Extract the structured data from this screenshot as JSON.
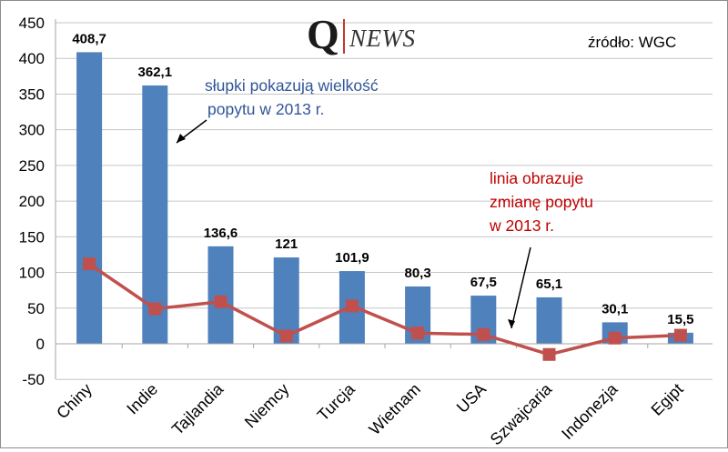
{
  "logo": {
    "q": "Q",
    "news": "NEWS"
  },
  "source_label": "źródło: WGC",
  "annotations": {
    "bars": [
      "słupki pokazują wielkość",
      "popytu w 2013 r."
    ],
    "line": [
      "linia obrazuje",
      "zmianę popytu",
      "w 2013 r."
    ]
  },
  "colors": {
    "bar": "#4f81bd",
    "line": "#c0504d",
    "bar_annotation": "#2f5597",
    "line_annotation": "#c00000"
  },
  "chart_data": {
    "type": "bar",
    "categories": [
      "Chiny",
      "Indie",
      "Tajlandia",
      "Niemcy",
      "Turcja",
      "Wietnam",
      "USA",
      "Szwajcaria",
      "Indonezja",
      "Egipt"
    ],
    "series": [
      {
        "type": "bar",
        "values": [
          408.7,
          362.1,
          136.6,
          121,
          101.9,
          80.3,
          67.5,
          65.1,
          30.1,
          15.5
        ]
      },
      {
        "type": "line",
        "values": [
          112,
          49,
          59,
          11,
          53,
          15,
          13,
          -15,
          8,
          12
        ]
      }
    ],
    "data_labels": [
      "408,7",
      "362,1",
      "136,6",
      "121",
      "101,9",
      "80,3",
      "67,5",
      "65,1",
      "30,1",
      "15,5"
    ],
    "y_ticks": [
      "-50",
      "0",
      "50",
      "100",
      "150",
      "200",
      "250",
      "300",
      "350",
      "400",
      "450"
    ],
    "ylim": [
      -50,
      450
    ],
    "grid": true,
    "legend": "none"
  }
}
